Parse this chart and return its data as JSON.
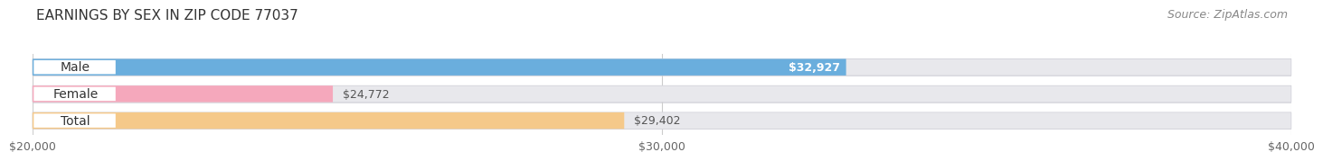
{
  "title": "EARNINGS BY SEX IN ZIP CODE 77037",
  "source": "Source: ZipAtlas.com",
  "categories": [
    "Male",
    "Female",
    "Total"
  ],
  "values": [
    32927,
    24772,
    29402
  ],
  "bar_colors": [
    "#6aaedd",
    "#f5a8bc",
    "#f5c98a"
  ],
  "value_labels": [
    "$32,927",
    "$24,772",
    "$29,402"
  ],
  "label_inside": [
    true,
    false,
    false
  ],
  "xmin": 20000,
  "xmax": 40000,
  "xticks": [
    20000,
    30000,
    40000
  ],
  "xtick_labels": [
    "$20,000",
    "$30,000",
    "$40,000"
  ],
  "background_color": "#ffffff",
  "bar_bg_color": "#e8e8ec",
  "bar_border_color": "#d0d0d8",
  "title_fontsize": 11,
  "source_fontsize": 9,
  "label_fontsize": 9,
  "tick_fontsize": 9,
  "category_fontsize": 10
}
